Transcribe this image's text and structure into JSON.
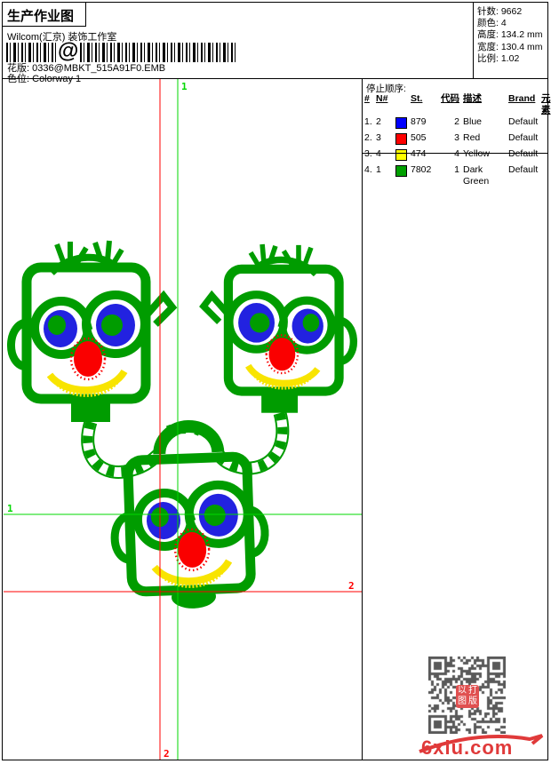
{
  "header": {
    "title": "生产作业图",
    "company": "Wilcom(汇京) 装饰工作室",
    "barcode_at": "@",
    "pattern_label": "花版:",
    "pattern_value": "0336@MBKT_515A91F0.EMB",
    "colorway_label": "色位:",
    "colorway_value": "Colorway 1",
    "stats": [
      {
        "label": "针数:",
        "value": "9662"
      },
      {
        "label": "颜色:",
        "value": "4"
      },
      {
        "label": "高度:",
        "value": "134.2 mm"
      },
      {
        "label": "宽度:",
        "value": "130.4 mm"
      },
      {
        "label": "比例:",
        "value": "1.02"
      }
    ]
  },
  "stop_sequence": {
    "title": "停止顺序:",
    "columns": [
      "#",
      "N#",
      "",
      "St.",
      "代码",
      "描述",
      "Brand",
      "元素"
    ],
    "rows": [
      {
        "idx": "1.",
        "n": "2",
        "swatch": "#0000ff",
        "st": "879",
        "code": "2",
        "desc": "Blue",
        "brand": "Default",
        "element": ""
      },
      {
        "idx": "2.",
        "n": "3",
        "swatch": "#ff0000",
        "st": "505",
        "code": "3",
        "desc": "Red",
        "brand": "Default",
        "element": ""
      },
      {
        "idx": "3.",
        "n": "4",
        "swatch": "#ffff00",
        "st": "474",
        "code": "4",
        "desc": "Yellow",
        "brand": "Default",
        "element": ""
      },
      {
        "idx": "4.",
        "n": "1",
        "swatch": "#00a000",
        "st": "7802",
        "code": "1",
        "desc": "Dark Green",
        "brand": "Default",
        "element": ""
      }
    ]
  },
  "guides": {
    "green": "#00d800",
    "red": "#ff0000",
    "top_label": "1",
    "left_label": "1",
    "right_label": "2",
    "bottom_label": "2"
  },
  "design_colors": {
    "stitch_green": "#009c00",
    "stitch_blue": "#2222e0",
    "stitch_red": "#fa0000",
    "stitch_yellow": "#f8e400"
  },
  "watermark": {
    "site": "6xiu.com",
    "seal_chars": [
      "以",
      "打",
      "图",
      "版"
    ],
    "qr_dark": "#595959",
    "seal_red": "#e05050",
    "site_red": "#e03a3a"
  }
}
